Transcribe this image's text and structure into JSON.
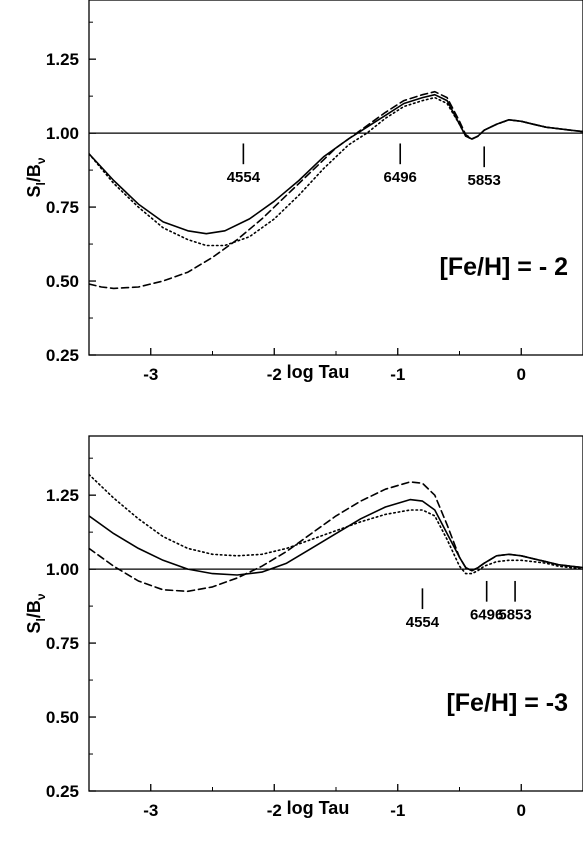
{
  "chart_data": [
    {
      "type": "line",
      "title": "",
      "xlabel": "log Tau",
      "ylabel": "S",
      "ylabel_sub": "l",
      "ylabel_tail": "/B",
      "ylabel_tail_sub": "ν",
      "xlim": [
        -3.5,
        0.5
      ],
      "ylim": [
        0.25,
        1.45
      ],
      "xticks": [
        -3,
        -2,
        -1,
        0
      ],
      "xtick_labels": [
        "-3",
        "-2",
        "-1",
        "0"
      ],
      "yticks": [
        0.25,
        0.5,
        0.75,
        1.0,
        1.25
      ],
      "ytick_labels": [
        "0.25",
        "0.50",
        "0.75",
        "1.00",
        "1.25"
      ],
      "reference_line": 1.0,
      "grid": false,
      "legend": "none",
      "panel_label": "[Fe/H] = - 2",
      "series": [
        {
          "style": "solid",
          "x": [
            -3.5,
            -3.3,
            -3.1,
            -2.9,
            -2.7,
            -2.55,
            -2.4,
            -2.2,
            -2.0,
            -1.8,
            -1.6,
            -1.4,
            -1.25,
            -1.1,
            -0.95,
            -0.8,
            -0.7,
            -0.6,
            -0.5,
            -0.45,
            -0.4,
            -0.35,
            -0.3,
            -0.2,
            -0.1,
            0.0,
            0.1,
            0.2,
            0.3,
            0.4,
            0.5
          ],
          "y": [
            0.93,
            0.84,
            0.76,
            0.7,
            0.67,
            0.66,
            0.67,
            0.71,
            0.77,
            0.84,
            0.92,
            0.98,
            1.02,
            1.06,
            1.1,
            1.12,
            1.13,
            1.11,
            1.03,
            0.99,
            0.98,
            0.99,
            1.01,
            1.03,
            1.045,
            1.04,
            1.03,
            1.02,
            1.015,
            1.01,
            1.005
          ]
        },
        {
          "style": "dotted",
          "x": [
            -3.5,
            -3.3,
            -3.1,
            -2.9,
            -2.7,
            -2.55,
            -2.4,
            -2.2,
            -2.0,
            -1.8,
            -1.6,
            -1.4,
            -1.25,
            -1.1,
            -0.95,
            -0.8,
            -0.7,
            -0.6,
            -0.5,
            -0.45,
            -0.4,
            -0.35,
            -0.3,
            -0.2,
            -0.1,
            0.0,
            0.1,
            0.2,
            0.3,
            0.4,
            0.5
          ],
          "y": [
            0.93,
            0.83,
            0.75,
            0.68,
            0.64,
            0.62,
            0.62,
            0.65,
            0.71,
            0.79,
            0.88,
            0.96,
            1.0,
            1.05,
            1.09,
            1.11,
            1.12,
            1.1,
            1.03,
            0.99,
            0.98,
            0.99,
            1.01,
            1.03,
            1.045,
            1.04,
            1.03,
            1.02,
            1.015,
            1.01,
            1.005
          ]
        },
        {
          "style": "dashed",
          "x": [
            -3.5,
            -3.4,
            -3.3,
            -3.1,
            -2.9,
            -2.7,
            -2.5,
            -2.3,
            -2.1,
            -1.9,
            -1.7,
            -1.5,
            -1.3,
            -1.1,
            -0.95,
            -0.8,
            -0.7,
            -0.6,
            -0.5,
            -0.45,
            -0.4,
            -0.35,
            -0.3,
            -0.2,
            -0.1,
            0.0,
            0.1,
            0.2,
            0.3,
            0.4,
            0.5
          ],
          "y": [
            0.49,
            0.48,
            0.475,
            0.48,
            0.5,
            0.53,
            0.58,
            0.64,
            0.71,
            0.79,
            0.87,
            0.95,
            1.01,
            1.07,
            1.11,
            1.13,
            1.14,
            1.12,
            1.04,
            0.995,
            0.98,
            0.99,
            1.01,
            1.03,
            1.045,
            1.04,
            1.03,
            1.02,
            1.015,
            1.01,
            1.005
          ]
        }
      ],
      "annotations": [
        {
          "text": "4554",
          "x": -2.25,
          "y_top": 0.965,
          "y_bottom": 0.895
        },
        {
          "text": "6496",
          "x": -0.98,
          "y_top": 0.965,
          "y_bottom": 0.895
        },
        {
          "text": "5853",
          "x": -0.3,
          "y_top": 0.955,
          "y_bottom": 0.885
        }
      ]
    },
    {
      "type": "line",
      "title": "",
      "xlabel": "log Tau",
      "ylabel": "S",
      "ylabel_sub": "l",
      "ylabel_tail": "/B",
      "ylabel_tail_sub": "ν",
      "xlim": [
        -3.5,
        0.5
      ],
      "ylim": [
        0.25,
        1.45
      ],
      "xticks": [
        -3,
        -2,
        -1,
        0
      ],
      "xtick_labels": [
        "-3",
        "-2",
        "-1",
        "0"
      ],
      "yticks": [
        0.25,
        0.5,
        0.75,
        1.0,
        1.25
      ],
      "ytick_labels": [
        "0.25",
        "0.50",
        "0.75",
        "1.00",
        "1.25"
      ],
      "reference_line": 1.0,
      "grid": false,
      "legend": "none",
      "panel_label": "[Fe/H] = -3",
      "series": [
        {
          "style": "solid",
          "x": [
            -3.5,
            -3.3,
            -3.1,
            -2.9,
            -2.7,
            -2.5,
            -2.3,
            -2.1,
            -1.9,
            -1.7,
            -1.5,
            -1.3,
            -1.1,
            -0.9,
            -0.8,
            -0.7,
            -0.6,
            -0.5,
            -0.45,
            -0.4,
            -0.35,
            -0.3,
            -0.2,
            -0.1,
            0.0,
            0.1,
            0.2,
            0.3,
            0.4,
            0.5
          ],
          "y": [
            1.18,
            1.12,
            1.07,
            1.03,
            1.0,
            0.985,
            0.98,
            0.99,
            1.02,
            1.07,
            1.12,
            1.17,
            1.21,
            1.235,
            1.23,
            1.2,
            1.12,
            1.04,
            1.005,
            0.995,
            1.005,
            1.02,
            1.045,
            1.05,
            1.045,
            1.035,
            1.025,
            1.015,
            1.01,
            1.005
          ]
        },
        {
          "style": "dotted",
          "x": [
            -3.5,
            -3.3,
            -3.1,
            -2.9,
            -2.7,
            -2.5,
            -2.3,
            -2.1,
            -1.9,
            -1.7,
            -1.5,
            -1.3,
            -1.1,
            -0.9,
            -0.8,
            -0.7,
            -0.6,
            -0.5,
            -0.45,
            -0.4,
            -0.35,
            -0.3,
            -0.2,
            -0.1,
            0.0,
            0.1,
            0.2,
            0.3,
            0.4,
            0.5
          ],
          "y": [
            1.32,
            1.24,
            1.17,
            1.11,
            1.07,
            1.05,
            1.045,
            1.05,
            1.07,
            1.1,
            1.13,
            1.16,
            1.185,
            1.2,
            1.2,
            1.18,
            1.1,
            1.01,
            0.985,
            0.985,
            0.995,
            1.01,
            1.025,
            1.03,
            1.03,
            1.025,
            1.02,
            1.01,
            1.005,
            1.0
          ]
        },
        {
          "style": "dashed",
          "x": [
            -3.5,
            -3.3,
            -3.1,
            -2.9,
            -2.7,
            -2.5,
            -2.3,
            -2.1,
            -1.9,
            -1.7,
            -1.5,
            -1.3,
            -1.1,
            -0.9,
            -0.8,
            -0.7,
            -0.6,
            -0.5,
            -0.45,
            -0.4,
            -0.35,
            -0.3,
            -0.2,
            -0.1,
            0.0,
            0.1,
            0.2,
            0.3,
            0.4,
            0.5
          ],
          "y": [
            1.07,
            1.01,
            0.96,
            0.93,
            0.925,
            0.94,
            0.97,
            1.01,
            1.06,
            1.12,
            1.18,
            1.23,
            1.27,
            1.295,
            1.29,
            1.25,
            1.15,
            1.04,
            1.005,
            0.995,
            1.005,
            1.02,
            1.045,
            1.05,
            1.045,
            1.035,
            1.025,
            1.015,
            1.01,
            1.005
          ]
        }
      ],
      "annotations": [
        {
          "text": "4554",
          "x": -0.8,
          "y_top": 0.935,
          "y_bottom": 0.865
        },
        {
          "text": "6496",
          "x": -0.28,
          "y_top": 0.96,
          "y_bottom": 0.89
        },
        {
          "text": "5853",
          "x": -0.05,
          "y_top": 0.96,
          "y_bottom": 0.89
        }
      ]
    }
  ]
}
